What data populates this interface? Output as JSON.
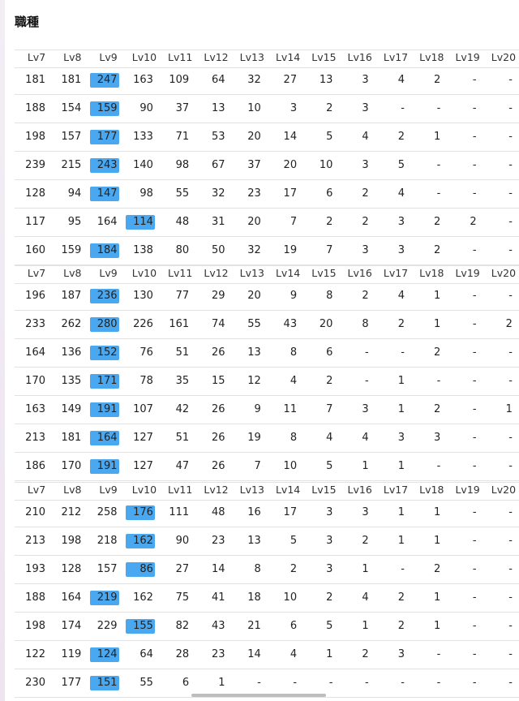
{
  "header": {
    "title": "職種"
  },
  "tables": [
    {
      "columns": [
        "Lv7",
        "Lv8",
        "Lv9",
        "Lv10",
        "Lv11",
        "Lv12",
        "Lv13",
        "Lv14",
        "Lv15",
        "Lv16",
        "Lv17",
        "Lv18",
        "Lv19",
        "Lv20"
      ],
      "highlight": [
        2,
        2,
        2,
        2,
        2,
        3,
        2
      ],
      "rows": [
        [
          181,
          181,
          247,
          163,
          109,
          64,
          32,
          27,
          13,
          3,
          4,
          2,
          "-",
          "-"
        ],
        [
          188,
          154,
          159,
          90,
          37,
          13,
          10,
          3,
          2,
          3,
          "-",
          "-",
          "-",
          "-"
        ],
        [
          198,
          157,
          177,
          133,
          71,
          53,
          20,
          14,
          5,
          4,
          2,
          1,
          "-",
          "-"
        ],
        [
          239,
          215,
          243,
          140,
          98,
          67,
          37,
          20,
          10,
          3,
          5,
          "-",
          "-",
          "-"
        ],
        [
          128,
          94,
          147,
          98,
          55,
          32,
          23,
          17,
          6,
          2,
          4,
          "-",
          "-",
          "-"
        ],
        [
          117,
          95,
          164,
          114,
          48,
          31,
          20,
          7,
          2,
          2,
          3,
          2,
          2,
          "-"
        ],
        [
          160,
          159,
          184,
          138,
          80,
          50,
          32,
          19,
          7,
          3,
          3,
          2,
          "-",
          "-"
        ]
      ]
    },
    {
      "columns": [
        "Lv7",
        "Lv8",
        "Lv9",
        "Lv10",
        "Lv11",
        "Lv12",
        "Lv13",
        "Lv14",
        "Lv15",
        "Lv16",
        "Lv17",
        "Lv18",
        "Lv19",
        "Lv20"
      ],
      "highlight": [
        2,
        2,
        2,
        2,
        2,
        2,
        2
      ],
      "rows": [
        [
          196,
          187,
          236,
          130,
          77,
          29,
          20,
          9,
          8,
          2,
          4,
          1,
          "-",
          "-"
        ],
        [
          233,
          262,
          280,
          226,
          161,
          74,
          55,
          43,
          20,
          8,
          2,
          1,
          "-",
          2
        ],
        [
          164,
          136,
          152,
          76,
          51,
          26,
          13,
          8,
          6,
          "-",
          "-",
          2,
          "-",
          "-"
        ],
        [
          170,
          135,
          171,
          78,
          35,
          15,
          12,
          4,
          2,
          "-",
          1,
          "-",
          "-",
          "-"
        ],
        [
          163,
          149,
          191,
          107,
          42,
          26,
          9,
          11,
          7,
          3,
          1,
          2,
          "-",
          1
        ],
        [
          213,
          181,
          164,
          127,
          51,
          26,
          19,
          8,
          4,
          4,
          3,
          3,
          "-",
          "-"
        ],
        [
          186,
          170,
          191,
          127,
          47,
          26,
          7,
          10,
          5,
          1,
          1,
          "-",
          "-",
          "-"
        ]
      ]
    },
    {
      "columns": [
        "Lv7",
        "Lv8",
        "Lv9",
        "Lv10",
        "Lv11",
        "Lv12",
        "Lv13",
        "Lv14",
        "Lv15",
        "Lv16",
        "Lv17",
        "Lv18",
        "Lv19",
        "Lv20"
      ],
      "highlight": [
        3,
        3,
        3,
        2,
        3,
        2,
        2
      ],
      "rows": [
        [
          210,
          212,
          258,
          176,
          111,
          48,
          16,
          17,
          3,
          3,
          1,
          1,
          "-",
          "-"
        ],
        [
          213,
          198,
          218,
          162,
          90,
          23,
          13,
          5,
          3,
          2,
          1,
          1,
          "-",
          "-"
        ],
        [
          193,
          128,
          157,
          86,
          27,
          14,
          8,
          2,
          3,
          1,
          "-",
          2,
          "-",
          "-"
        ],
        [
          188,
          164,
          219,
          162,
          75,
          41,
          18,
          10,
          2,
          4,
          2,
          1,
          "-",
          "-"
        ],
        [
          198,
          174,
          229,
          155,
          82,
          43,
          21,
          6,
          5,
          1,
          2,
          1,
          "-",
          "-"
        ],
        [
          122,
          119,
          124,
          64,
          28,
          23,
          14,
          4,
          1,
          2,
          3,
          "-",
          "-",
          "-"
        ],
        [
          230,
          177,
          151,
          55,
          6,
          1,
          "-",
          "-",
          "-",
          "-",
          "-",
          "-",
          "-",
          "-"
        ]
      ]
    }
  ]
}
